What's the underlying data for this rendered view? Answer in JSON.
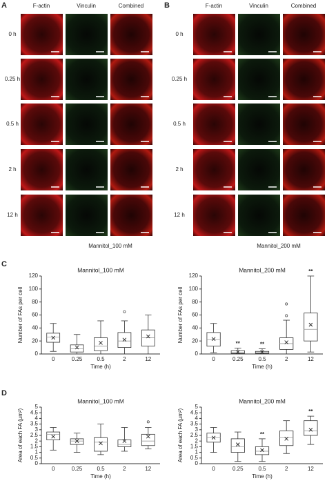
{
  "figure": {
    "panel_labels": [
      "A",
      "B",
      "C",
      "D"
    ],
    "image_columns": [
      "F-actin",
      "Vinculin",
      "Combined"
    ],
    "time_points": [
      "0 h",
      "0.25 h",
      "0.5 h",
      "2 h",
      "12 h"
    ],
    "captions": [
      "Mannitol_100 mM",
      "Mannitol_200 mM"
    ]
  },
  "chart_data": [
    {
      "type": "box",
      "title": "Mannitol_100 mM",
      "xlabel": "Time  (h)",
      "ylabel": "Number of FAs per cell",
      "categories": [
        "0",
        "0.25",
        "0.5",
        "2",
        "12"
      ],
      "ylim": [
        0,
        120
      ],
      "yticks": [
        0,
        20,
        40,
        60,
        80,
        100,
        120
      ],
      "boxes": [
        {
          "min": 4,
          "q1": 18,
          "median": 26,
          "q3": 32,
          "max": 47,
          "mean": 25
        },
        {
          "min": 0,
          "q1": 3,
          "median": 8,
          "q3": 14,
          "max": 30,
          "mean": 10
        },
        {
          "min": 0,
          "q1": 5,
          "median": 12,
          "q3": 25,
          "max": 51,
          "mean": 17
        },
        {
          "min": 0,
          "q1": 10,
          "median": 20,
          "q3": 33,
          "max": 51,
          "mean": 22,
          "outliers": [
            65
          ]
        },
        {
          "min": 0,
          "q1": 12,
          "median": 25,
          "q3": 37,
          "max": 60,
          "mean": 27
        }
      ]
    },
    {
      "type": "box",
      "title": "Mannitol_200 mM",
      "xlabel": "Time  (h)",
      "ylabel": "Number of FAs per cell",
      "categories": [
        "0",
        "0.25",
        "0.5",
        "2",
        "12"
      ],
      "ylim": [
        0,
        120
      ],
      "yticks": [
        0,
        20,
        40,
        60,
        80,
        100,
        120
      ],
      "boxes": [
        {
          "min": 2,
          "q1": 12,
          "median": 22,
          "q3": 33,
          "max": 47,
          "mean": 23
        },
        {
          "min": 0,
          "q1": 1,
          "median": 2,
          "q3": 5,
          "max": 9,
          "mean": 3
        },
        {
          "min": 0,
          "q1": 1,
          "median": 2,
          "q3": 4,
          "max": 8,
          "mean": 3
        },
        {
          "min": 0,
          "q1": 7,
          "median": 16,
          "q3": 25,
          "max": 52,
          "mean": 18,
          "outliers": [
            77,
            59
          ]
        },
        {
          "min": 3,
          "q1": 20,
          "median": 38,
          "q3": 63,
          "max": 120,
          "mean": 45
        }
      ],
      "significance": [
        null,
        "**",
        "**",
        null,
        "**"
      ]
    },
    {
      "type": "box",
      "title": "Mannitol_100 mM",
      "xlabel": "Time  (h)",
      "ylabel": "Area of each FA (μm²)",
      "categories": [
        "0",
        "0.25",
        "0.5",
        "2",
        "12"
      ],
      "ylim": [
        0,
        5
      ],
      "yticks": [
        0,
        0.5,
        1,
        1.5,
        2,
        2.5,
        3,
        3.5,
        4,
        4.5,
        5
      ],
      "boxes": [
        {
          "min": 1.2,
          "q1": 2.1,
          "median": 2.6,
          "q3": 2.8,
          "max": 3.2,
          "mean": 2.4
        },
        {
          "min": 1.0,
          "q1": 1.7,
          "median": 2.0,
          "q3": 2.2,
          "max": 2.7,
          "mean": 2.0
        },
        {
          "min": 0.8,
          "q1": 1.1,
          "median": 1.9,
          "q3": 2.3,
          "max": 3.5,
          "mean": 1.8
        },
        {
          "min": 1.1,
          "q1": 1.5,
          "median": 1.7,
          "q3": 2.1,
          "max": 3.2,
          "mean": 2.0
        },
        {
          "min": 1.3,
          "q1": 1.6,
          "median": 2.0,
          "q3": 2.6,
          "max": 3.2,
          "mean": 2.4,
          "outliers": [
            3.7
          ]
        }
      ]
    },
    {
      "type": "box",
      "title": "Mannitol_200 mM",
      "xlabel": "Time  (h)",
      "ylabel": "Area of each FA (μm²)",
      "categories": [
        "0",
        "0.25",
        "0.5",
        "2",
        "12"
      ],
      "ylim": [
        0,
        5
      ],
      "yticks": [
        0,
        0.5,
        1,
        1.5,
        2,
        2.5,
        3,
        3.5,
        4,
        4.5,
        5
      ],
      "boxes": [
        {
          "min": 1.0,
          "q1": 1.9,
          "median": 2.3,
          "q3": 2.7,
          "max": 3.2,
          "mean": 2.3
        },
        {
          "min": 0.2,
          "q1": 1.0,
          "median": 1.5,
          "q3": 2.2,
          "max": 2.8,
          "mean": 1.7
        },
        {
          "min": 0.2,
          "q1": 0.8,
          "median": 1.1,
          "q3": 1.5,
          "max": 2.2,
          "mean": 1.2
        },
        {
          "min": 0.9,
          "q1": 1.6,
          "median": 2.3,
          "q3": 2.9,
          "max": 3.8,
          "mean": 2.2
        },
        {
          "min": 1.7,
          "q1": 2.5,
          "median": 2.9,
          "q3": 3.8,
          "max": 4.2,
          "mean": 3.0
        }
      ],
      "significance": [
        null,
        null,
        "**",
        null,
        "**"
      ]
    }
  ]
}
